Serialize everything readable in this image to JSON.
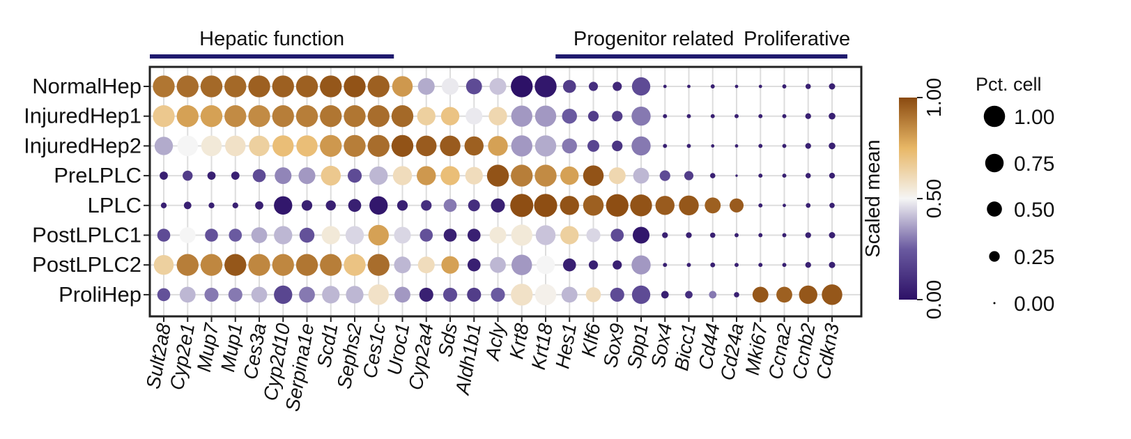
{
  "chart_data": {
    "type": "dotplot",
    "title": "",
    "groups": [
      {
        "label": "Hepatic function",
        "start": "Sult2a8",
        "end": "Ces1c"
      },
      {
        "label": "Progenitor related",
        "start": "Hes1",
        "end": "Cd24a"
      },
      {
        "label": "Proliferative",
        "start": "Mki67",
        "end": "Cdkn3"
      }
    ],
    "rows": [
      "NormalHep",
      "InjuredHep1",
      "InjuredHep2",
      "PreLPLC",
      "LPLC",
      "PostLPLC1",
      "PostLPLC2",
      "ProliHep"
    ],
    "genes": [
      "Sult2a8",
      "Cyp2e1",
      "Mup7",
      "Mup1",
      "Ces3a",
      "Cyp2d10",
      "Serpina1e",
      "Scd1",
      "Sephs2",
      "Ces1c",
      "Uroc1",
      "Cyp2a4",
      "Sds",
      "Aldh1b1",
      "Acly",
      "Krt8",
      "Krt18",
      "Hes1",
      "Klf6",
      "Sox9",
      "Spp1",
      "Sox4",
      "Bicc1",
      "Cd44",
      "Cd24a",
      "Mki67",
      "Ccna2",
      "Ccnb2",
      "Cdkn3"
    ],
    "scaled_mean": [
      [
        0.9,
        0.92,
        0.93,
        0.93,
        0.95,
        0.95,
        0.95,
        0.97,
        0.98,
        0.95,
        0.82,
        0.38,
        0.48,
        0.2,
        0.42,
        0.0,
        0.02,
        0.15,
        0.1,
        0.08,
        0.2,
        0.05,
        0.05,
        0.05,
        0.05,
        0.05,
        0.05,
        0.05,
        0.05
      ],
      [
        0.68,
        0.8,
        0.8,
        0.85,
        0.85,
        0.88,
        0.88,
        0.9,
        0.9,
        0.92,
        0.93,
        0.65,
        0.7,
        0.48,
        0.62,
        0.35,
        0.35,
        0.25,
        0.15,
        0.15,
        0.3,
        0.05,
        0.05,
        0.05,
        0.05,
        0.05,
        0.05,
        0.05,
        0.05
      ],
      [
        0.38,
        0.5,
        0.55,
        0.58,
        0.65,
        0.72,
        0.72,
        0.82,
        0.88,
        0.92,
        0.98,
        0.96,
        0.96,
        0.95,
        0.8,
        0.35,
        0.38,
        0.3,
        0.18,
        0.12,
        0.3,
        0.05,
        0.05,
        0.05,
        0.05,
        0.05,
        0.05,
        0.05,
        0.05
      ],
      [
        0.05,
        0.15,
        0.05,
        0.05,
        0.2,
        0.32,
        0.35,
        0.68,
        0.2,
        0.4,
        0.6,
        0.82,
        0.72,
        0.6,
        0.98,
        0.88,
        0.85,
        0.8,
        0.98,
        0.62,
        0.4,
        0.2,
        0.15,
        0.05,
        0.05,
        0.05,
        0.05,
        0.05,
        0.05
      ],
      [
        0.05,
        0.05,
        0.05,
        0.05,
        0.05,
        0.02,
        0.05,
        0.05,
        0.05,
        0.02,
        0.05,
        0.1,
        0.3,
        0.1,
        0.05,
        0.99,
        0.99,
        0.98,
        0.95,
        0.99,
        0.98,
        0.96,
        0.97,
        0.95,
        0.96,
        0.05,
        0.05,
        0.05,
        0.05
      ],
      [
        0.2,
        0.5,
        0.22,
        0.25,
        0.38,
        0.4,
        0.22,
        0.55,
        0.45,
        0.8,
        0.45,
        0.22,
        0.05,
        0.05,
        0.55,
        0.55,
        0.42,
        0.65,
        0.45,
        0.2,
        0.02,
        0.05,
        0.05,
        0.05,
        0.05,
        0.05,
        0.05,
        0.05,
        0.05
      ],
      [
        0.65,
        0.88,
        0.86,
        0.97,
        0.86,
        0.86,
        0.9,
        0.88,
        0.7,
        0.92,
        0.4,
        0.6,
        0.8,
        0.05,
        0.4,
        0.35,
        0.5,
        0.05,
        0.05,
        0.05,
        0.35,
        0.05,
        0.05,
        0.05,
        0.05,
        0.05,
        0.05,
        0.05,
        0.05
      ],
      [
        0.22,
        0.4,
        0.3,
        0.3,
        0.4,
        0.18,
        0.3,
        0.4,
        0.4,
        0.58,
        0.35,
        0.05,
        0.2,
        0.15,
        0.25,
        0.58,
        0.52,
        0.4,
        0.6,
        0.2,
        0.2,
        0.05,
        0.1,
        0.3,
        0.05,
        0.97,
        0.95,
        0.97,
        0.97
      ]
    ],
    "pct_cell": [
      [
        0.85,
        0.85,
        0.85,
        0.85,
        0.85,
        0.85,
        0.85,
        0.85,
        0.85,
        0.85,
        0.75,
        0.5,
        0.5,
        0.45,
        0.5,
        0.85,
        0.85,
        0.3,
        0.15,
        0.15,
        0.6,
        0.02,
        0.02,
        0.03,
        0.02,
        0.02,
        0.03,
        0.05,
        0.07
      ],
      [
        0.85,
        0.85,
        0.85,
        0.85,
        0.85,
        0.85,
        0.85,
        0.85,
        0.85,
        0.85,
        0.85,
        0.6,
        0.6,
        0.5,
        0.6,
        0.8,
        0.8,
        0.4,
        0.2,
        0.2,
        0.65,
        0.03,
        0.03,
        0.03,
        0.03,
        0.03,
        0.03,
        0.06,
        0.08
      ],
      [
        0.6,
        0.75,
        0.75,
        0.75,
        0.75,
        0.8,
        0.8,
        0.85,
        0.85,
        0.85,
        0.85,
        0.75,
        0.75,
        0.65,
        0.7,
        0.8,
        0.8,
        0.4,
        0.25,
        0.2,
        0.65,
        0.03,
        0.03,
        0.02,
        0.02,
        0.03,
        0.03,
        0.06,
        0.08
      ],
      [
        0.12,
        0.18,
        0.12,
        0.12,
        0.3,
        0.5,
        0.5,
        0.7,
        0.35,
        0.6,
        0.65,
        0.65,
        0.65,
        0.55,
        0.85,
        0.85,
        0.85,
        0.6,
        0.75,
        0.5,
        0.45,
        0.2,
        0.15,
        0.05,
        0.01,
        0.03,
        0.03,
        0.05,
        0.06
      ],
      [
        0.06,
        0.1,
        0.06,
        0.06,
        0.12,
        0.6,
        0.2,
        0.18,
        0.3,
        0.6,
        0.2,
        0.2,
        0.3,
        0.25,
        0.35,
        0.95,
        0.95,
        0.65,
        0.75,
        0.9,
        0.85,
        0.65,
        0.7,
        0.45,
        0.35,
        0.03,
        0.02,
        0.04,
        0.05
      ],
      [
        0.3,
        0.45,
        0.3,
        0.3,
        0.45,
        0.6,
        0.4,
        0.6,
        0.6,
        0.75,
        0.5,
        0.3,
        0.3,
        0.3,
        0.5,
        0.8,
        0.7,
        0.6,
        0.35,
        0.3,
        0.5,
        0.06,
        0.06,
        0.05,
        0.03,
        0.03,
        0.03,
        0.06,
        0.07
      ],
      [
        0.7,
        0.85,
        0.85,
        0.85,
        0.85,
        0.85,
        0.85,
        0.85,
        0.85,
        0.85,
        0.5,
        0.5,
        0.55,
        0.3,
        0.45,
        0.75,
        0.6,
        0.3,
        0.15,
        0.15,
        0.65,
        0.03,
        0.03,
        0.04,
        0.03,
        0.03,
        0.03,
        0.06,
        0.07
      ],
      [
        0.3,
        0.45,
        0.35,
        0.35,
        0.45,
        0.6,
        0.45,
        0.55,
        0.55,
        0.75,
        0.45,
        0.35,
        0.35,
        0.35,
        0.35,
        0.85,
        0.8,
        0.45,
        0.4,
        0.35,
        0.6,
        0.1,
        0.1,
        0.1,
        0.05,
        0.45,
        0.45,
        0.6,
        0.75
      ]
    ],
    "colorbar": {
      "label": "Scaled mean",
      "ticks": [
        0.0,
        0.5,
        1.0
      ],
      "tick_labels": [
        "0.00",
        "0.50",
        "1.00"
      ],
      "colors": [
        "#2d1167",
        "#6a5aa0",
        "#f5f5f5",
        "#e8b766",
        "#8a4a10"
      ]
    },
    "size_legend": {
      "title": "Pct. cell",
      "values": [
        1.0,
        0.75,
        0.5,
        0.25,
        0.0
      ],
      "labels": [
        "1.00",
        "0.75",
        "0.50",
        "0.25",
        "0.00"
      ]
    },
    "group_bar_color": "#1f1a6e"
  }
}
